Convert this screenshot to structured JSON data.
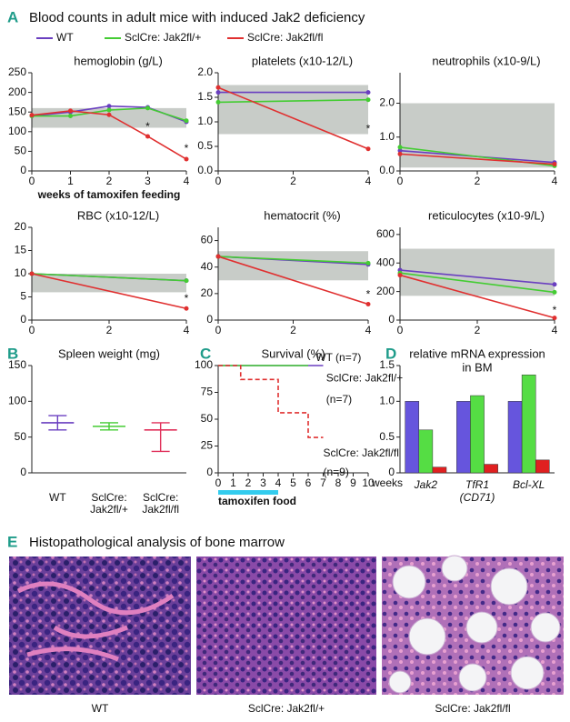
{
  "title": "Blood counts in adult mice with induced Jak2 deficiency",
  "panels": [
    "A",
    "B",
    "C",
    "D",
    "E"
  ],
  "histology": {
    "title": "Histopathological analysis of bone marrow",
    "captions": [
      "WT",
      "SclCre: Jak2fl/+",
      "SclCre: Jak2fl/fl"
    ]
  },
  "chart_data": [
    {
      "type": "line",
      "title": "hemoglobin (g/L)",
      "xlabel": "weeks of tamoxifen feeding",
      "x": [
        0,
        1,
        2,
        3,
        4
      ],
      "xlim": [
        0,
        4
      ],
      "xticks": [
        0,
        1,
        2,
        3,
        4
      ],
      "ylim": [
        0,
        250
      ],
      "yticks": [
        0,
        50,
        100,
        150,
        200,
        250
      ],
      "band": [
        110,
        160
      ],
      "series": [
        {
          "name": "WT",
          "color": "#6a3fc0",
          "values": [
            140,
            150,
            165,
            162,
            125
          ]
        },
        {
          "name": "SclCre: Jak2fl/+",
          "color": "#44cc33",
          "values": [
            140,
            140,
            155,
            160,
            128
          ]
        },
        {
          "name": "SclCre: Jak2fl/fl",
          "color": "#e03030",
          "values": [
            142,
            153,
            143,
            88,
            30
          ]
        }
      ],
      "annotations": [
        {
          "text": "*",
          "x": 3,
          "y": 112
        },
        {
          "text": "*",
          "x": 4,
          "y": 56
        }
      ]
    },
    {
      "type": "line",
      "title": "platelets (x10-12/L)",
      "x": [
        0,
        4
      ],
      "xlim": [
        0,
        4
      ],
      "xticks": [
        0,
        2,
        4
      ],
      "ylim": [
        0,
        2
      ],
      "yticks": [
        {
          "value": 0,
          "label": "0.0"
        },
        0.5,
        {
          "value": 1,
          "label": "1.0"
        },
        1.5,
        {
          "value": 2,
          "label": "2.0"
        }
      ],
      "band": [
        0.75,
        1.75
      ],
      "series": [
        {
          "color": "#6a3fc0",
          "values": [
            1.6,
            1.6
          ]
        },
        {
          "color": "#44cc33",
          "values": [
            1.4,
            1.45
          ]
        },
        {
          "color": "#e03030",
          "values": [
            1.7,
            0.45
          ]
        }
      ],
      "annotations": [
        {
          "text": "*",
          "x": 4,
          "y": 0.85
        }
      ]
    },
    {
      "type": "line",
      "title": "neutrophils (x10-9/L)",
      "x": [
        0,
        4
      ],
      "xlim": [
        0,
        4
      ],
      "xticks": [
        0,
        2,
        4
      ],
      "ylim": [
        0,
        2.9
      ],
      "yticks": [
        {
          "value": 0,
          "label": "0.0"
        },
        {
          "value": 1,
          "label": "1.0"
        },
        {
          "value": 2,
          "label": "2.0"
        }
      ],
      "band": [
        0.1,
        2.0
      ],
      "series": [
        {
          "color": "#6a3fc0",
          "values": [
            0.6,
            0.25
          ]
        },
        {
          "color": "#44cc33",
          "values": [
            0.7,
            0.15
          ]
        },
        {
          "color": "#e03030",
          "values": [
            0.5,
            0.2
          ]
        }
      ]
    },
    {
      "type": "line",
      "title": "RBC (x10-12/L)",
      "x": [
        0,
        4
      ],
      "xlim": [
        0,
        4
      ],
      "xticks": [
        0,
        2,
        4
      ],
      "ylim": [
        0,
        20
      ],
      "yticks": [
        0,
        5,
        10,
        15,
        20
      ],
      "band": [
        6,
        10
      ],
      "series": [
        {
          "color": "#6a3fc0",
          "values": [
            10,
            8.5
          ]
        },
        {
          "color": "#44cc33",
          "values": [
            10,
            8.5
          ]
        },
        {
          "color": "#e03030",
          "values": [
            10,
            2.5
          ]
        }
      ],
      "annotations": [
        {
          "text": "*",
          "x": 4,
          "y": 4.5
        }
      ]
    },
    {
      "type": "line",
      "title": "hematocrit (%)",
      "x": [
        0,
        4
      ],
      "xlim": [
        0,
        4
      ],
      "xticks": [
        0,
        2,
        4
      ],
      "ylim": [
        0,
        70
      ],
      "yticks": [
        0,
        20,
        40,
        60
      ],
      "band": [
        30,
        52
      ],
      "series": [
        {
          "color": "#6a3fc0",
          "values": [
            48,
            42
          ]
        },
        {
          "color": "#44cc33",
          "values": [
            48,
            43
          ]
        },
        {
          "color": "#e03030",
          "values": [
            48,
            12
          ]
        }
      ],
      "annotations": [
        {
          "text": "*",
          "x": 4,
          "y": 19
        }
      ]
    },
    {
      "type": "line",
      "title": "reticulocytes (x10-9/L)",
      "x": [
        0,
        4
      ],
      "xlim": [
        0,
        4
      ],
      "xticks": [
        0,
        2,
        4
      ],
      "ylim": [
        0,
        650
      ],
      "yticks": [
        0,
        200,
        400,
        600
      ],
      "band": [
        170,
        500
      ],
      "series": [
        {
          "color": "#6a3fc0",
          "values": [
            350,
            250
          ]
        },
        {
          "color": "#44cc33",
          "values": [
            330,
            195
          ]
        },
        {
          "color": "#e03030",
          "values": [
            315,
            15
          ]
        }
      ],
      "annotations": [
        {
          "text": "*",
          "x": 4,
          "y": 65
        }
      ]
    },
    {
      "type": "range",
      "title": "Spleen weight (mg)",
      "categories": [
        [
          "WT"
        ],
        [
          "SclCre:",
          "Jak2fl/+"
        ],
        [
          "SclCre:",
          "Jak2fl/fl"
        ]
      ],
      "colors": [
        "#6a3fc0",
        "#44cc33",
        "#e0305a"
      ],
      "median": [
        70,
        65,
        60
      ],
      "low": [
        60,
        60,
        30
      ],
      "high": [
        80,
        70,
        70
      ],
      "ylim": [
        0,
        150
      ],
      "yticks": [
        0,
        50,
        100,
        150
      ]
    },
    {
      "type": "step",
      "title": "Survival (%)",
      "xlabel": "weeks",
      "xlim": [
        0,
        10
      ],
      "xticks": [
        0,
        1,
        2,
        3,
        4,
        5,
        6,
        7,
        8,
        9,
        10
      ],
      "ylim": [
        0,
        100
      ],
      "yticks": [
        0,
        25,
        50,
        75,
        100
      ],
      "series": [
        {
          "color": "#6a3fc0",
          "x": [
            0,
            7
          ],
          "values": [
            100,
            100
          ]
        },
        {
          "color": "#44cc33",
          "x": [
            0,
            6
          ],
          "values": [
            100,
            100
          ]
        },
        {
          "color": "#e03030",
          "dash": true,
          "x": [
            0,
            1.5,
            1.5,
            4,
            4,
            6,
            6,
            7
          ],
          "values": [
            100,
            100,
            87,
            87,
            56,
            56,
            33,
            33
          ]
        }
      ],
      "annotations": [
        {
          "text": "WT (n=7)",
          "x": 6.5,
          "y": 107
        },
        {
          "text": "SclCre: Jak2fl/+",
          "x": 7.2,
          "y": 88
        },
        {
          "text": "(n=7)",
          "x": 7.2,
          "y": 68
        },
        {
          "text": "SclCre: Jak2fl/fl",
          "x": 7,
          "y": 18
        },
        {
          "text": "(n=9)",
          "x": 7,
          "y": 0
        }
      ],
      "treatment": {
        "label": "tamoxifen food",
        "range": [
          0,
          4
        ]
      }
    },
    {
      "type": "bar",
      "title": "relative mRNA expression",
      "subtitle": "in BM",
      "categories": [
        [
          "Jak2"
        ],
        [
          "TfR1",
          "(CD71)"
        ],
        [
          "Bcl-XL"
        ]
      ],
      "ylim": [
        0,
        1.5
      ],
      "yticks": [
        0,
        0.5,
        {
          "value": 1,
          "label": "1.0"
        },
        1.5
      ],
      "series": [
        {
          "color": "#6655dd",
          "values": [
            1.0,
            1.0,
            1.0
          ]
        },
        {
          "color": "#55dd44",
          "values": [
            0.6,
            1.08,
            1.37
          ]
        },
        {
          "color": "#e02020",
          "values": [
            0.08,
            0.12,
            0.18
          ]
        }
      ]
    }
  ]
}
